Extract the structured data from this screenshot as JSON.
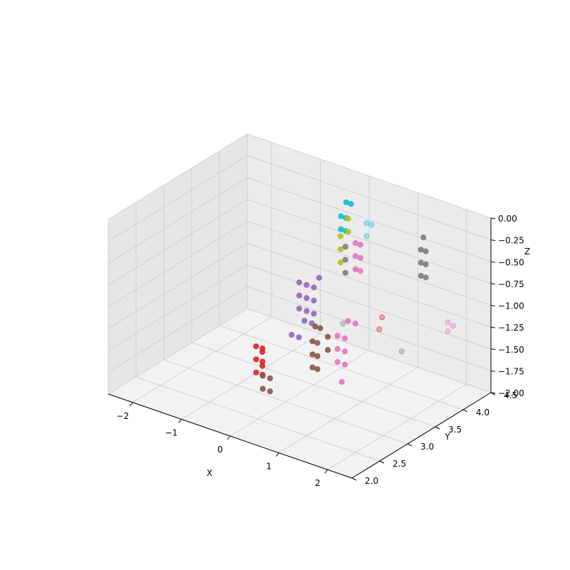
{
  "chart_data": {
    "type": "scatter",
    "projection": "3d",
    "title": "",
    "xlabel": "X",
    "ylabel": "Y",
    "zlabel": "Z",
    "xlim": [
      -2.5,
      2.5
    ],
    "ylim": [
      2.0,
      4.5
    ],
    "zlim": [
      -2.0,
      0.0
    ],
    "grid": true,
    "x_ticks": [
      "−2",
      "−1",
      "0",
      "1",
      "2"
    ],
    "y_ticks": [
      "2.0",
      "2.5",
      "3.0",
      "3.5",
      "4.0",
      "4.5"
    ],
    "z_ticks": [
      "0.00",
      "−0.25",
      "−0.50",
      "−0.75",
      "−1.00",
      "−1.25",
      "−1.50",
      "−1.75",
      "−2.00"
    ],
    "x_tick_values": [
      -2,
      -1,
      0,
      1,
      2
    ],
    "y_tick_values": [
      2.0,
      2.5,
      3.0,
      3.5,
      4.0,
      4.5
    ],
    "z_tick_values": [
      0.0,
      -0.25,
      -0.5,
      -0.75,
      -1.0,
      -1.25,
      -1.5,
      -1.75,
      -2.0
    ],
    "series": [
      {
        "color": "#d62728",
        "points": [
          [
            -0.55,
            2.95,
            -1.45
          ],
          [
            -0.42,
            2.95,
            -1.45
          ],
          [
            -0.55,
            2.95,
            -1.6
          ],
          [
            -0.42,
            2.95,
            -1.6
          ],
          [
            -0.55,
            2.95,
            -1.75
          ],
          [
            -0.42,
            2.95,
            -1.75
          ],
          [
            -0.48,
            3.0,
            -1.52
          ],
          [
            -0.48,
            3.0,
            -1.68
          ]
        ]
      },
      {
        "color": "#8c564b",
        "points": [
          [
            -0.3,
            2.85,
            -1.85
          ],
          [
            -0.15,
            2.85,
            -1.85
          ],
          [
            -0.3,
            2.85,
            -1.7
          ],
          [
            -0.15,
            2.85,
            -1.7
          ],
          [
            0.55,
            3.0,
            -1.5
          ],
          [
            0.65,
            3.0,
            -1.5
          ],
          [
            0.55,
            3.0,
            -1.35
          ],
          [
            0.65,
            3.0,
            -1.35
          ],
          [
            0.55,
            3.0,
            -1.2
          ],
          [
            0.65,
            3.0,
            -1.2
          ],
          [
            0.55,
            3.05,
            -1.05
          ],
          [
            0.65,
            3.05,
            -1.05
          ],
          [
            0.75,
            3.1,
            -1.3
          ],
          [
            0.75,
            3.1,
            -1.15
          ]
        ]
      },
      {
        "color": "#9467bd",
        "points": [
          [
            0.05,
            3.2,
            -1.0
          ],
          [
            0.2,
            3.2,
            -1.0
          ],
          [
            0.35,
            3.2,
            -1.0
          ],
          [
            0.05,
            3.2,
            -0.85
          ],
          [
            0.2,
            3.2,
            -0.85
          ],
          [
            0.35,
            3.2,
            -0.85
          ],
          [
            0.05,
            3.2,
            -0.7
          ],
          [
            0.2,
            3.2,
            -0.7
          ],
          [
            0.35,
            3.2,
            -0.7
          ],
          [
            0.1,
            3.25,
            -1.15
          ],
          [
            0.25,
            3.25,
            -1.15
          ],
          [
            0.4,
            3.25,
            -0.6
          ],
          [
            -0.05,
            3.15,
            -1.3
          ],
          [
            0.1,
            3.15,
            -1.3
          ]
        ]
      },
      {
        "color": "#e377c2",
        "points": [
          [
            0.95,
            3.1,
            -1.4
          ],
          [
            1.1,
            3.1,
            -1.4
          ],
          [
            0.95,
            3.1,
            -1.25
          ],
          [
            1.1,
            3.1,
            -1.25
          ],
          [
            0.95,
            3.1,
            -1.1
          ],
          [
            1.1,
            3.1,
            -1.1
          ],
          [
            1.05,
            3.2,
            -0.95
          ],
          [
            1.2,
            3.2,
            -0.95
          ],
          [
            1.15,
            3.0,
            -1.55
          ],
          [
            -0.05,
            4.3,
            -1.0
          ],
          [
            0.05,
            4.3,
            -1.0
          ],
          [
            -0.05,
            4.3,
            -0.85
          ],
          [
            0.05,
            4.3,
            -0.85
          ],
          [
            -0.05,
            4.3,
            -0.7
          ],
          [
            0.05,
            4.3,
            -0.7
          ]
        ]
      },
      {
        "color": "#7f7f7f",
        "points": [
          [
            -0.2,
            4.25,
            -1.05
          ],
          [
            -0.2,
            4.25,
            -0.9
          ],
          [
            -0.2,
            4.25,
            -0.75
          ],
          [
            0.95,
            4.6,
            -1.0
          ],
          [
            1.05,
            4.6,
            -1.0
          ],
          [
            0.95,
            4.6,
            -0.85
          ],
          [
            1.05,
            4.6,
            -0.85
          ],
          [
            0.95,
            4.6,
            -0.7
          ],
          [
            1.05,
            4.6,
            -0.7
          ],
          [
            1.0,
            4.6,
            -0.55
          ]
        ]
      },
      {
        "color": "#bcbd22",
        "points": [
          [
            -0.3,
            4.25,
            -0.95
          ],
          [
            -0.3,
            4.25,
            -0.8
          ],
          [
            -0.3,
            4.25,
            -0.65
          ],
          [
            -0.2,
            4.3,
            -0.6
          ],
          [
            -0.2,
            4.3,
            -0.45
          ]
        ]
      },
      {
        "color": "#17becf",
        "points": [
          [
            -0.35,
            4.3,
            -0.6
          ],
          [
            -0.25,
            4.3,
            -0.6
          ],
          [
            -0.35,
            4.3,
            -0.45
          ],
          [
            -0.25,
            4.3,
            -0.45
          ],
          [
            -0.3,
            4.35,
            -0.3
          ],
          [
            -0.2,
            4.35,
            -0.3
          ]
        ]
      }
    ],
    "faint_series": [
      {
        "color": "#17becf",
        "points": [
          [
            -0.05,
            4.5,
            -0.55
          ],
          [
            0.05,
            4.5,
            -0.55
          ],
          [
            -0.05,
            4.5,
            -0.7
          ]
        ]
      },
      {
        "color": "#d62728",
        "points": [
          [
            0.95,
            3.9,
            -1.2
          ],
          [
            0.95,
            3.85,
            -1.32
          ]
        ]
      },
      {
        "color": "#7f7f7f",
        "points": [
          [
            0.72,
            3.4,
            -1.12
          ],
          [
            1.75,
            3.55,
            -1.3
          ]
        ]
      },
      {
        "color": "#e377c2",
        "points": [
          [
            2.3,
            3.9,
            -1.0
          ],
          [
            2.3,
            3.9,
            -1.1
          ],
          [
            2.35,
            3.95,
            -1.05
          ]
        ]
      }
    ]
  }
}
